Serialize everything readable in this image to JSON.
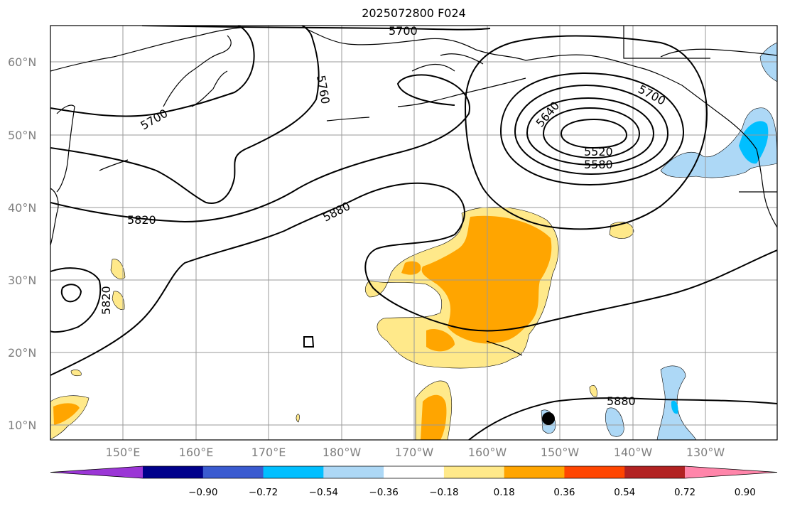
{
  "title": "2025072800 F024",
  "map": {
    "lat_labels": [
      "60°N",
      "50°N",
      "40°N",
      "30°N",
      "20°N",
      "10°N"
    ],
    "lon_labels": [
      "150°E",
      "160°E",
      "170°E",
      "180°W",
      "170°W",
      "160°W",
      "150°W",
      "140°W",
      "130°W"
    ],
    "contour_labels": [
      "5700",
      "5760",
      "5700",
      "5820",
      "5880",
      "5820",
      "5700",
      "5640",
      "5520",
      "5580",
      "5880"
    ],
    "marker": "storm-center-dot"
  },
  "colorbar": {
    "tick_labels": [
      "−0.90",
      "−0.72",
      "−0.54",
      "−0.36",
      "−0.18",
      "0.18",
      "0.36",
      "0.54",
      "0.72",
      "0.90"
    ],
    "colors": [
      "#9b36d6",
      "#00008b",
      "#3a5bd0",
      "#00bfff",
      "#add8f6",
      "#ffffff",
      "#ffe98a",
      "#ffa500",
      "#ff4500",
      "#b22222",
      "#ff85aa"
    ]
  }
}
